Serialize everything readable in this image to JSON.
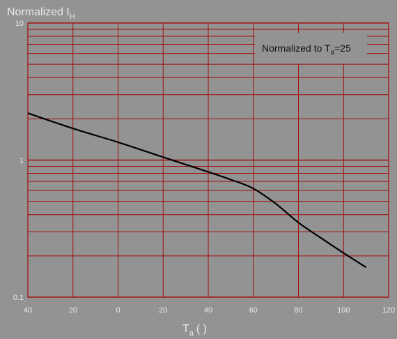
{
  "chart_data": {
    "type": "line",
    "title": "",
    "ylabel": {
      "main": "Normalized I",
      "sub": "H"
    },
    "xlabel": {
      "main": "T",
      "sub": "a",
      "suffix": "(   )"
    },
    "x_ticks": [
      "40",
      "20",
      "0",
      "20",
      "40",
      "60",
      "80",
      "100",
      "120"
    ],
    "x_tick_values": [
      -40,
      -20,
      0,
      20,
      40,
      60,
      80,
      100,
      120
    ],
    "y_ticks": [
      "10",
      "1",
      "0.1"
    ],
    "y_tick_values": [
      10,
      1,
      0.1
    ],
    "xlim": [
      -40,
      120
    ],
    "ylim": [
      0.1,
      10
    ],
    "y_scale": "log",
    "grid": true,
    "annotation": {
      "main": "Normalized to T",
      "sub": "a",
      "suffix": "=25"
    },
    "series": [
      {
        "x": [
          -40,
          -20,
          0,
          20,
          40,
          50,
          60,
          70,
          80,
          90,
          100,
          110
        ],
        "y": [
          2.2,
          1.7,
          1.35,
          1.05,
          0.82,
          0.72,
          0.62,
          0.48,
          0.35,
          0.27,
          0.21,
          0.165
        ]
      }
    ],
    "colors": {
      "grid": "#a30d0d",
      "line": "#000000",
      "background": "#939393",
      "text": "#e9e9e9"
    }
  }
}
